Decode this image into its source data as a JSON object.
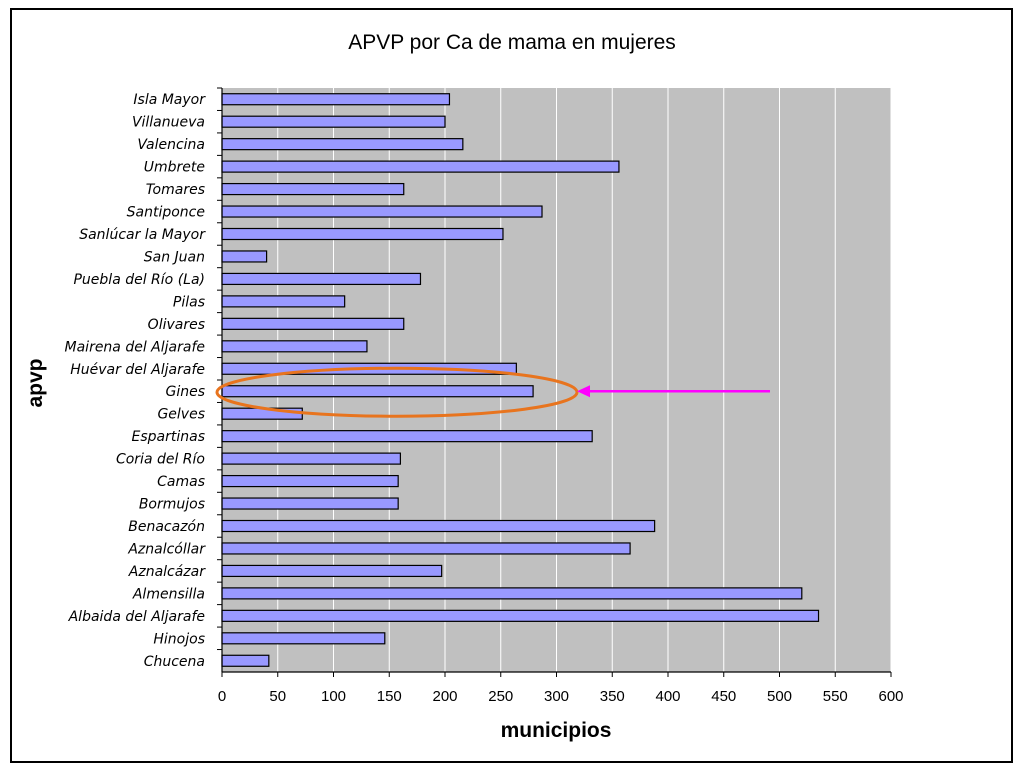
{
  "chart_data": {
    "type": "bar",
    "orientation": "horizontal",
    "title": "APVP por Ca de mama en mujeres",
    "xlabel": "municipios",
    "ylabel": "apvp",
    "xlim": [
      0,
      600
    ],
    "xticks": [
      0,
      50,
      100,
      150,
      200,
      250,
      300,
      350,
      400,
      450,
      500,
      550,
      600
    ],
    "grid": true,
    "plot_background": "#c0c0c0",
    "bar_color": "#9999ff",
    "bar_edge_color": "#000000",
    "categories": [
      "Isla Mayor",
      "Villanueva",
      "Valencina",
      "Umbrete",
      "Tomares",
      "Santiponce",
      "Sanlúcar la Mayor",
      "San Juan",
      "Puebla del Río (La)",
      "Pilas",
      "Olivares",
      "Mairena del Aljarafe",
      "Huévar del Aljarafe",
      "Gines",
      "Gelves",
      "Espartinas",
      "Coria del Río",
      "Camas",
      "Bormujos",
      "Benacazón",
      "Aznalcóllar",
      "Aznalcázar",
      "Almensilla",
      "Albaida del Aljarafe",
      "Hinojos",
      "Chucena"
    ],
    "values": [
      204,
      200,
      216,
      356,
      163,
      287,
      252,
      40,
      178,
      110,
      163,
      130,
      264,
      279,
      72,
      332,
      160,
      158,
      158,
      388,
      366,
      197,
      520,
      535,
      146,
      42
    ],
    "highlight": {
      "category": "Gines",
      "ellipse_color": "#e8741e",
      "arrow_color": "#ff00ff"
    }
  }
}
